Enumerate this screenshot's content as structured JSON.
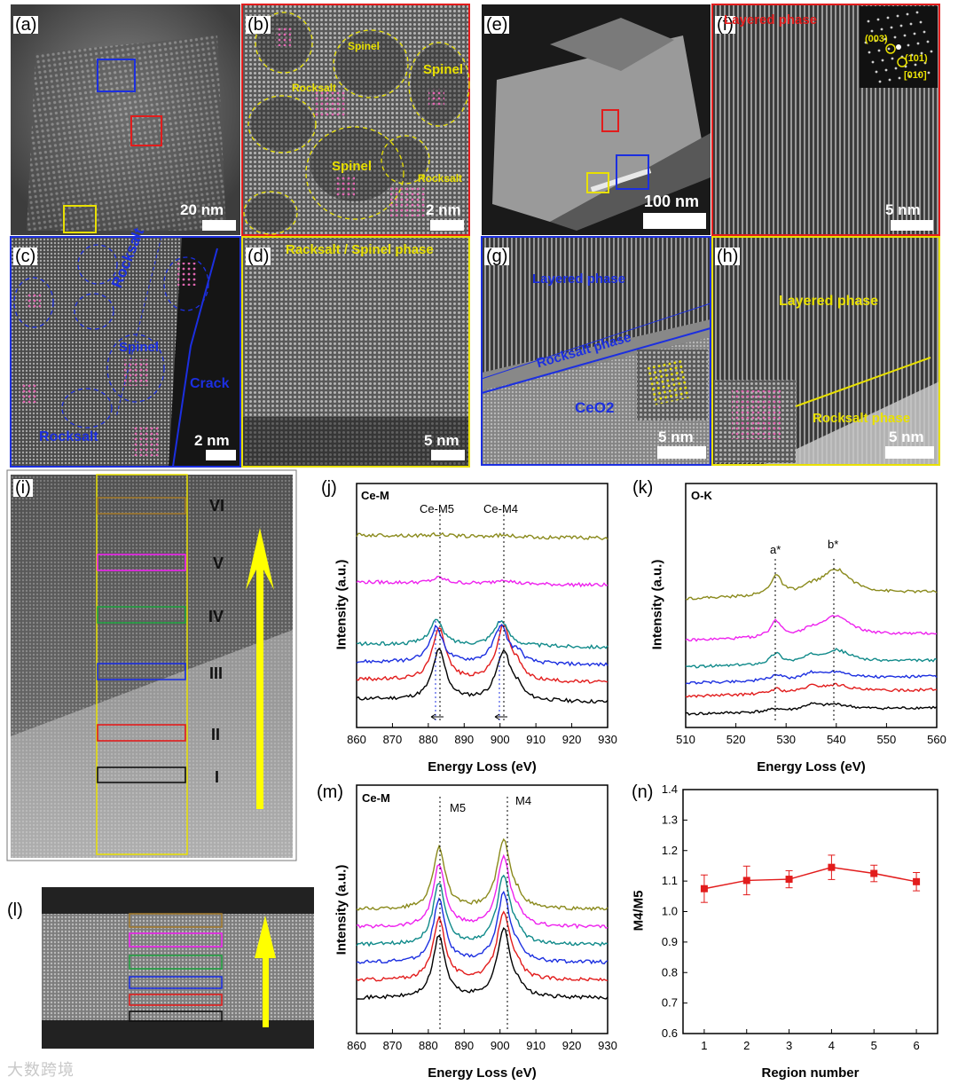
{
  "colors": {
    "red": "#e21c1c",
    "blue": "#1c2fe0",
    "yellow": "#e8e000",
    "olive": "#8a8a1c",
    "magenta": "#ee22ee",
    "teal": "#108a8a",
    "black": "#000000",
    "region_box_brown": "#a0782c",
    "region_box_green": "#20a040"
  },
  "panel_letters": [
    "(a)",
    "(b)",
    "(c)",
    "(d)",
    "(e)",
    "(f)",
    "(g)",
    "(h)",
    "(i)",
    "(j)",
    "(k)",
    "(l)",
    "(m)",
    "(n)"
  ],
  "a": {
    "scale": "20 nm"
  },
  "b": {
    "labels": [
      "Spinel",
      "Spinel",
      "Rocksalt",
      "Spinel",
      "Rocksalt"
    ],
    "scale": "2 nm"
  },
  "c": {
    "rocksalt_top": "Rocksalt",
    "spinel": "Spinel",
    "crack": "Crack",
    "rocksalt_bottom": "Rocksalt",
    "scale": "2 nm"
  },
  "d": {
    "title": "Racksalt / Spinel phase",
    "scale": "5 nm"
  },
  "e": {
    "scale": "100 nm"
  },
  "f": {
    "title": "Layered phase",
    "fft": [
      "(003)",
      "(101)",
      "[010]"
    ],
    "scale": "5 nm"
  },
  "g": {
    "layered": "Layered phase",
    "rocksalt": "Rocksalt phase",
    "ceo2": "CeO2",
    "scale": "5 nm"
  },
  "h": {
    "layered": "Layered phase",
    "rocksalt": "Rocksalt phase",
    "scale": "5 nm"
  },
  "i": {
    "regions": [
      "VI",
      "V",
      "IV",
      "III",
      "II",
      "I"
    ]
  },
  "chart_data": [
    {
      "panel": "(j)",
      "type": "line",
      "title": "Ce-M",
      "xlabel": "Energy Loss (eV)",
      "ylabel": "Intensity (a.u.)",
      "xlim": [
        860,
        930
      ],
      "xticks": [
        860,
        870,
        880,
        890,
        900,
        910,
        920,
        930
      ],
      "annotations": [
        "Ce-M5",
        "Ce-M4"
      ],
      "peaks_ev": [
        883,
        901
      ],
      "series_colors": [
        "#000000",
        "#e21c1c",
        "#1c2fe0",
        "#108a8a",
        "#ee22ee",
        "#8a8a1c"
      ]
    },
    {
      "panel": "(k)",
      "type": "line",
      "title": "O-K",
      "xlabel": "Energy Loss (eV)",
      "ylabel": "Intensity (a.u.)",
      "xlim": [
        510,
        560
      ],
      "xticks": [
        510,
        520,
        530,
        540,
        550,
        560
      ],
      "annotations": [
        "a*",
        "b*"
      ],
      "peaks_ev": [
        528,
        540
      ],
      "series_colors": [
        "#000000",
        "#e21c1c",
        "#1c2fe0",
        "#108a8a",
        "#ee22ee",
        "#8a8a1c"
      ]
    },
    {
      "panel": "(m)",
      "type": "line",
      "title": "Ce-M",
      "xlabel": "Energy Loss (eV)",
      "ylabel": "Intensity (a.u.)",
      "xlim": [
        860,
        930
      ],
      "xticks": [
        860,
        870,
        880,
        890,
        900,
        910,
        920,
        930
      ],
      "annotations": [
        "M5",
        "M4"
      ],
      "peaks_ev": [
        883,
        901
      ],
      "series_colors": [
        "#000000",
        "#e21c1c",
        "#1c2fe0",
        "#108a8a",
        "#ee22ee",
        "#8a8a1c"
      ]
    },
    {
      "panel": "(n)",
      "type": "scatter",
      "title": "",
      "xlabel": "Region number",
      "ylabel": "M4/M5",
      "xlim": [
        0.5,
        6.5
      ],
      "ylim": [
        0.6,
        1.4
      ],
      "xticks": [
        1,
        2,
        3,
        4,
        5,
        6
      ],
      "yticks": [
        0.6,
        0.7,
        0.8,
        0.9,
        1.0,
        1.1,
        1.2,
        1.3,
        1.4
      ],
      "x": [
        1,
        2,
        3,
        4,
        5,
        6
      ],
      "y": [
        1.075,
        1.102,
        1.106,
        1.145,
        1.125,
        1.098
      ],
      "err": [
        0.045,
        0.047,
        0.028,
        0.04,
        0.027,
        0.03
      ],
      "color": "#e21c1c"
    }
  ],
  "watermark": "大数跨境"
}
